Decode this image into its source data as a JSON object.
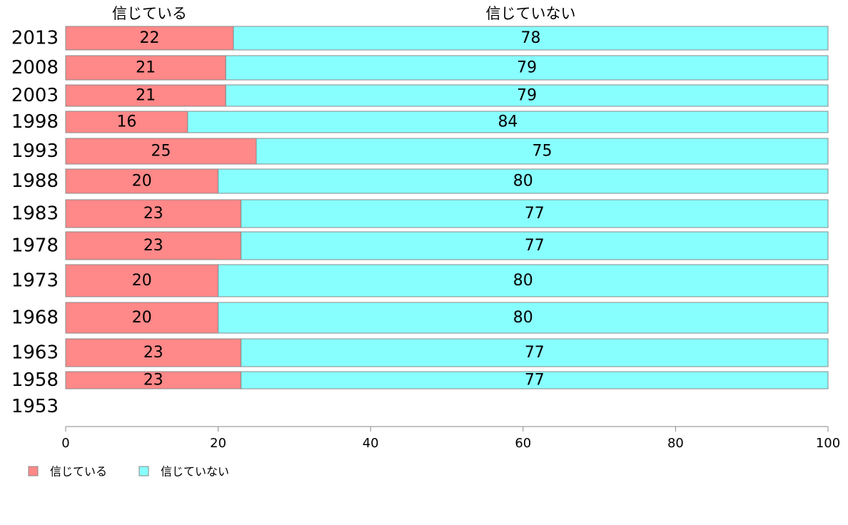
{
  "chart_data": {
    "type": "bar",
    "orientation": "horizontal",
    "stacked": true,
    "categories": [
      "2013",
      "2008",
      "2003",
      "1998",
      "1993",
      "1988",
      "1983",
      "1978",
      "1973",
      "1968",
      "1963",
      "1958",
      "1953"
    ],
    "series": [
      {
        "name": "信じている",
        "color": "#ff8888",
        "values": [
          22,
          21,
          21,
          16,
          25,
          20,
          23,
          23,
          20,
          20,
          23,
          23,
          null
        ]
      },
      {
        "name": "信じていない",
        "color": "#88ffff",
        "values": [
          78,
          79,
          79,
          84,
          75,
          80,
          77,
          77,
          80,
          80,
          77,
          77,
          null
        ]
      }
    ],
    "column_headers": [
      "信じている",
      "信じていない"
    ],
    "xlim": [
      0,
      100
    ],
    "x_ticks": [
      0,
      20,
      40,
      60,
      80,
      100
    ],
    "grid": false,
    "legend_position": "bottom-left"
  }
}
